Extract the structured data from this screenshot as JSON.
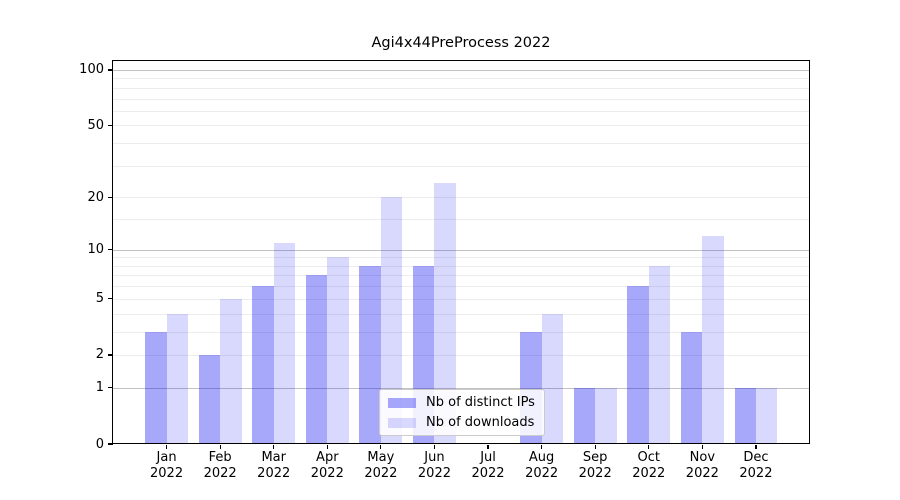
{
  "chart_data": {
    "type": "bar",
    "title": "Agi4x44PreProcess 2022",
    "year_label": "2022",
    "months": [
      "Jan",
      "Feb",
      "Mar",
      "Apr",
      "May",
      "Jun",
      "Jul",
      "Aug",
      "Sep",
      "Oct",
      "Nov",
      "Dec"
    ],
    "categories": [
      "Jan 2022",
      "Feb 2022",
      "Mar 2022",
      "Apr 2022",
      "May 2022",
      "Jun 2022",
      "Jul 2022",
      "Aug 2022",
      "Sep 2022",
      "Oct 2022",
      "Nov 2022",
      "Dec 2022"
    ],
    "series": [
      {
        "name": "Nb of distinct IPs",
        "color": "rgba(0,0,240,0.34)",
        "values": [
          3,
          2,
          6,
          7,
          8,
          8,
          0,
          3,
          1,
          6,
          3,
          1
        ]
      },
      {
        "name": "Nb of downloads",
        "color": "rgba(0,0,240,0.15)",
        "values": [
          4,
          5,
          11,
          9,
          20,
          24,
          0,
          4,
          1,
          8,
          12,
          1
        ]
      }
    ],
    "y_axis": {
      "scale": "log1p",
      "tick_values": [
        0,
        1,
        2,
        5,
        10,
        20,
        50,
        100
      ],
      "major_gridlines": [
        1,
        10,
        100
      ],
      "minor_gridlines": [
        2,
        3,
        4,
        5,
        6,
        7,
        8,
        9,
        15,
        20,
        30,
        40,
        50,
        60,
        70,
        80,
        90
      ],
      "ylim": [
        0,
        112
      ]
    },
    "legend": {
      "position": "lower center"
    },
    "colors": {
      "background": "#ffffff",
      "spine": "#000000",
      "major_grid": "#c2c2c2",
      "minor_grid": "#ededed",
      "tick_label": "#000000"
    },
    "grid": true
  }
}
